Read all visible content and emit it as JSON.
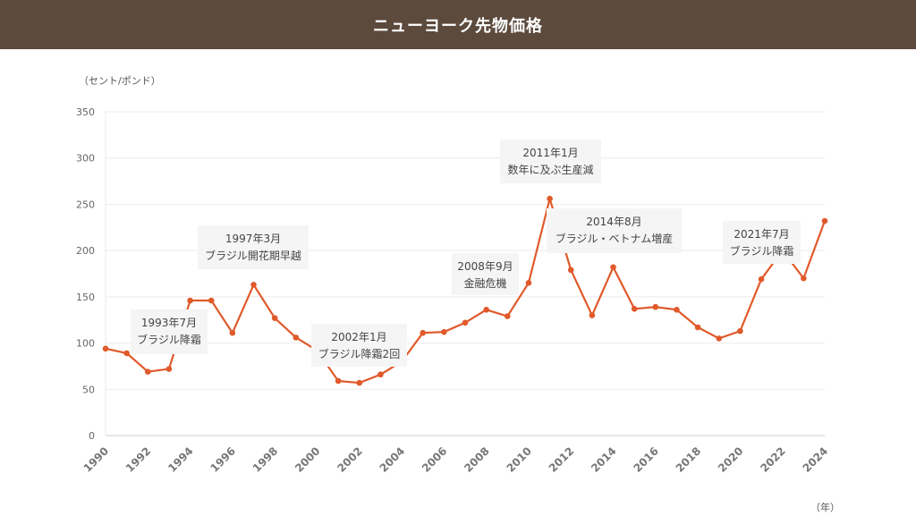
{
  "header": {
    "title": "ニューヨーク先物価格"
  },
  "chart_data": {
    "type": "line",
    "title": "ニューヨーク先物価格",
    "ylabel": "（セント/ポンド）",
    "xlabel": "（年）",
    "ylim": [
      0,
      350
    ],
    "yticks": [
      0,
      50,
      100,
      150,
      200,
      250,
      300,
      350
    ],
    "xticks": [
      1990,
      1992,
      1994,
      1996,
      1998,
      2000,
      2002,
      2004,
      2006,
      2008,
      2010,
      2012,
      2014,
      2016,
      2018,
      2020,
      2022,
      2024
    ],
    "grid": true,
    "color": "#e05a2b",
    "x": [
      1990,
      1991,
      1992,
      1993,
      1994,
      1995,
      1996,
      1997,
      1998,
      1999,
      2000,
      2001,
      2002,
      2003,
      2004,
      2005,
      2006,
      2007,
      2008,
      2009,
      2010,
      2011,
      2012,
      2013,
      2014,
      2015,
      2016,
      2017,
      2018,
      2019,
      2020,
      2021,
      2022,
      2023,
      2024
    ],
    "values": [
      94,
      89,
      69,
      72,
      146,
      146,
      111,
      163,
      127,
      106,
      92,
      59,
      57,
      66,
      80,
      111,
      112,
      122,
      136,
      129,
      165,
      256,
      179,
      130,
      182,
      137,
      139,
      136,
      117,
      105,
      113,
      169,
      200,
      170,
      232
    ],
    "annotations": [
      {
        "line1": "1993年7月",
        "line2": "ブラジル降霜"
      },
      {
        "line1": "1997年3月",
        "line2": "ブラジル開花期早越"
      },
      {
        "line1": "2002年1月",
        "line2": "ブラジル降霜2回"
      },
      {
        "line1": "2008年9月",
        "line2": "金融危機"
      },
      {
        "line1": "2011年1月",
        "line2": "数年に及ぶ生産減"
      },
      {
        "line1": "2014年8月",
        "line2": "ブラジル・ベトナム増産"
      },
      {
        "line1": "2021年7月",
        "line2": "ブラジル降霜"
      }
    ]
  }
}
